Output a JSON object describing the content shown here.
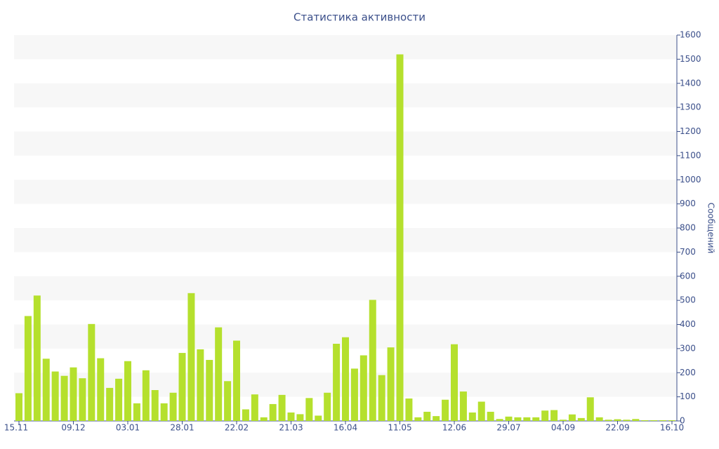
{
  "chart_data": {
    "type": "bar",
    "title": "Статистика активности",
    "y_axis_label": "Сообщений",
    "categories": [
      "15.11",
      null,
      null,
      null,
      null,
      null,
      "09.12",
      null,
      null,
      null,
      null,
      null,
      "03.01",
      null,
      null,
      null,
      null,
      null,
      "28.01",
      null,
      null,
      null,
      null,
      null,
      "22.02",
      null,
      null,
      null,
      null,
      null,
      "21.03",
      null,
      null,
      null,
      null,
      null,
      "16.04",
      null,
      null,
      null,
      null,
      null,
      "11.05",
      null,
      null,
      null,
      null,
      null,
      "12.06",
      null,
      null,
      null,
      null,
      null,
      "29.07",
      null,
      null,
      null,
      null,
      null,
      "04.09",
      null,
      null,
      null,
      null,
      null,
      "22.09",
      null,
      null,
      null,
      null,
      null,
      "16.10"
    ],
    "values": [
      115,
      435,
      520,
      258,
      205,
      187,
      222,
      177,
      402,
      260,
      137,
      175,
      248,
      73,
      210,
      128,
      73,
      117,
      282,
      530,
      297,
      253,
      388,
      165,
      333,
      48,
      110,
      15,
      70,
      108,
      35,
      28,
      95,
      22,
      117,
      320,
      347,
      217,
      272,
      502,
      190,
      305,
      1520,
      93,
      15,
      38,
      20,
      88,
      318,
      122,
      35,
      80,
      38,
      8,
      18,
      15,
      15,
      15,
      43,
      45,
      5,
      27,
      12,
      98,
      15,
      5,
      7,
      5,
      8,
      3,
      3,
      3,
      3
    ],
    "color": "#b5e02d",
    "ylim": [
      0,
      1600
    ],
    "yticks": [
      0,
      100,
      200,
      300,
      400,
      500,
      600,
      700,
      800,
      900,
      1000,
      1100,
      1200,
      1300,
      1400,
      1500,
      1600
    ],
    "y_axis_side": "right",
    "grid": true
  }
}
